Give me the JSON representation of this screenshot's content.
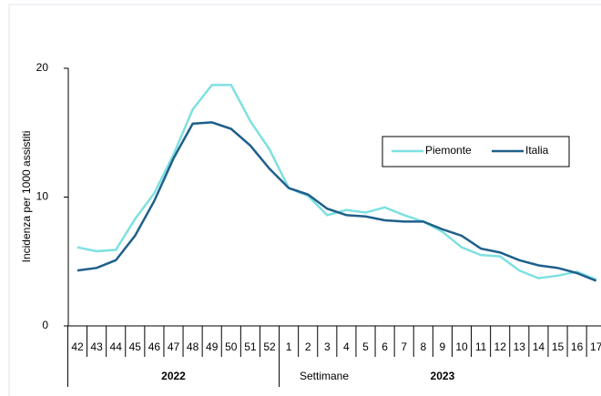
{
  "chart_data": {
    "type": "line",
    "y_label": "Incidenza per 1000 assistiti",
    "x_label": "Settimane",
    "year_labels": [
      "2022",
      "2023"
    ],
    "categories": [
      "42",
      "43",
      "44",
      "45",
      "46",
      "47",
      "48",
      "49",
      "50",
      "51",
      "52",
      "1",
      "2",
      "3",
      "4",
      "5",
      "6",
      "7",
      "8",
      "9",
      "10",
      "11",
      "12",
      "13",
      "14",
      "15",
      "16",
      "17"
    ],
    "series": [
      {
        "name": "Piemonte",
        "color": "#7fe0e0",
        "values": [
          6.1,
          5.8,
          5.9,
          8.3,
          10.3,
          13.3,
          16.8,
          18.7,
          18.7,
          15.9,
          13.7,
          10.7,
          10.1,
          8.6,
          9.0,
          8.8,
          9.2,
          8.6,
          8.1,
          7.3,
          6.1,
          5.5,
          5.4,
          4.3,
          3.7,
          3.9,
          4.2,
          3.6
        ]
      },
      {
        "name": "Italia",
        "color": "#1f5f8b",
        "values": [
          4.3,
          4.5,
          5.1,
          7.0,
          9.7,
          13.0,
          15.7,
          15.8,
          15.3,
          14.0,
          12.2,
          10.7,
          10.2,
          9.1,
          8.6,
          8.5,
          8.2,
          8.1,
          8.1,
          7.5,
          7.0,
          6.0,
          5.7,
          5.1,
          4.7,
          4.5,
          4.1,
          3.5
        ]
      }
    ],
    "ylim": [
      0,
      20
    ],
    "yticks": [
      0,
      10,
      20
    ]
  }
}
